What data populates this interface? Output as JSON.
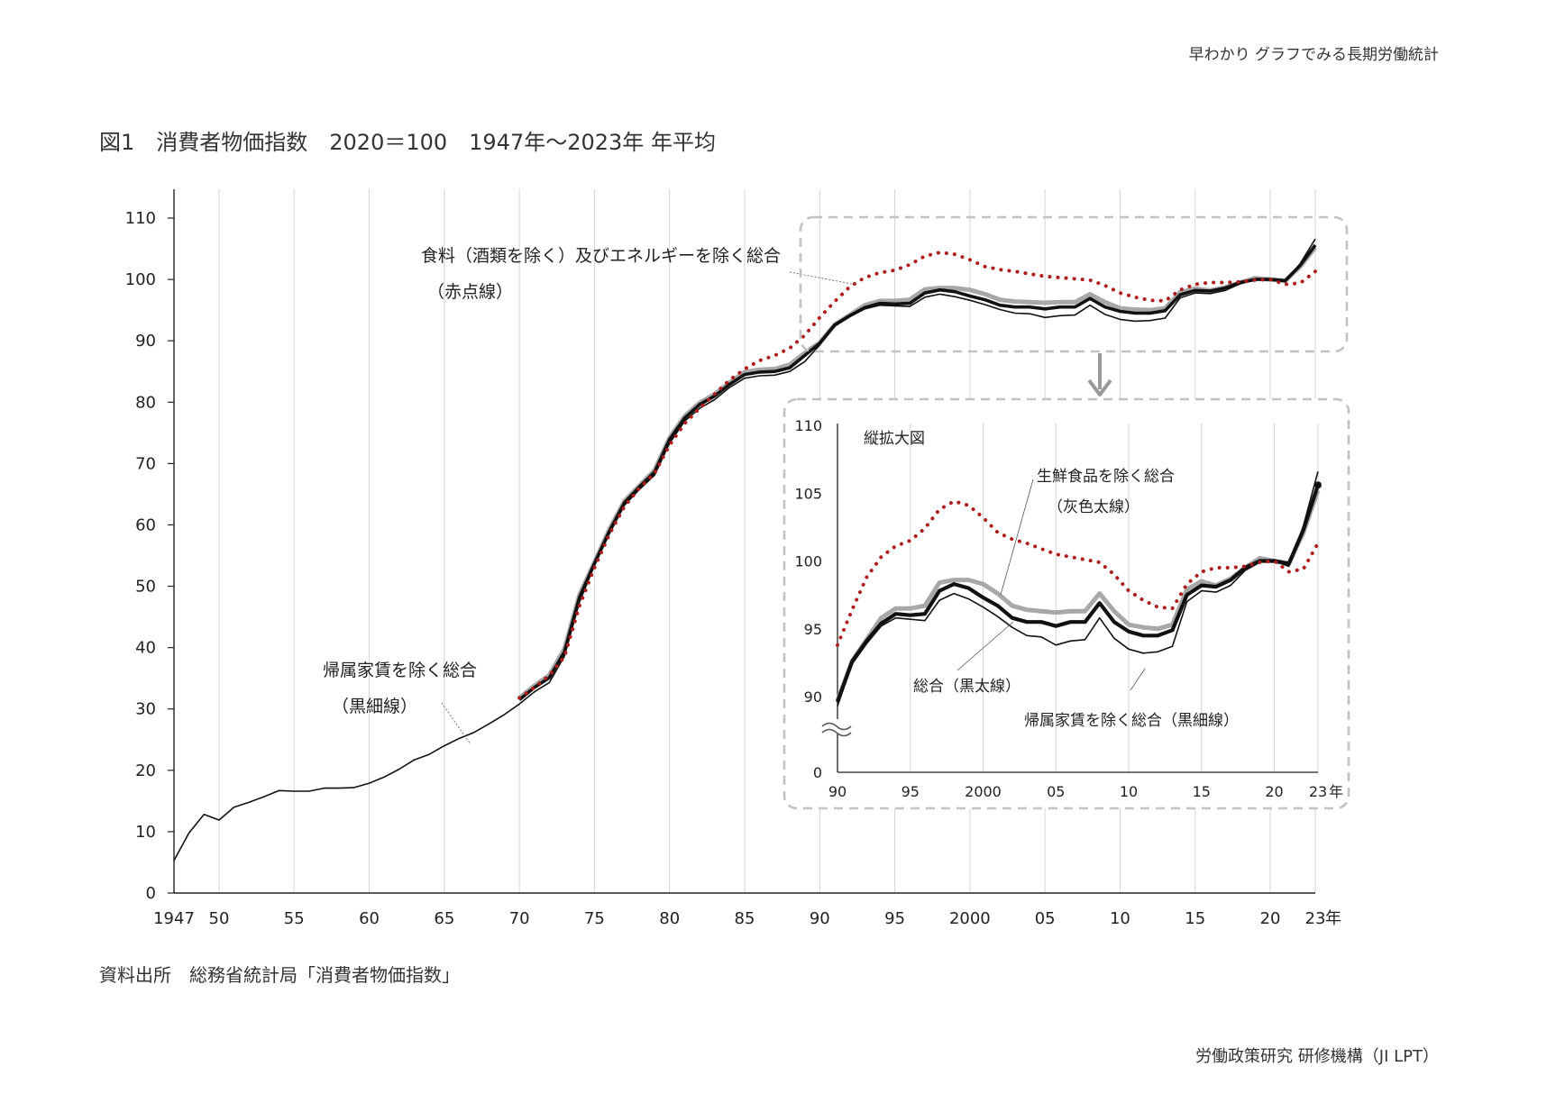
{
  "header": {
    "top_right": "早わかり グラフでみる長期労働統計",
    "figure_title": "図1　消費者物価指数　2020＝100　1947年～2023年 年平均",
    "source": "資料出所　総務省統計局「消費者物価指数」",
    "organization": "労働政策研究 研修機構（JI LPT）"
  },
  "colors": {
    "sogo": "#111111",
    "excl_fresh": "#a8a8a8",
    "excl_rent": "#111111",
    "excl_food_energy": "#b01c1c",
    "gridline": "#d4d4d4",
    "frame": "#c2c2c2"
  },
  "chart_data": [
    {
      "type": "line",
      "panel": "main",
      "x_unit": "year",
      "xlim": [
        1947,
        2023
      ],
      "ylim": [
        0,
        110
      ],
      "yticks": [
        0,
        10,
        20,
        30,
        40,
        50,
        60,
        70,
        80,
        90,
        100,
        110
      ],
      "xtick_values": [
        1947,
        1950,
        1955,
        1960,
        1965,
        1970,
        1975,
        1980,
        1985,
        1990,
        1995,
        2000,
        2005,
        2010,
        2015,
        2020,
        2023
      ],
      "xtick_labels": [
        "1947",
        "50",
        "55",
        "60",
        "65",
        "70",
        "75",
        "80",
        "85",
        "90",
        "95",
        "2000",
        "05",
        "10",
        "15",
        "20",
        "23"
      ],
      "x_unit_label": "年",
      "grid": "vertical",
      "annotations": [
        {
          "lines": [
            "食料（酒類を除く）及びエネルギーを除く総合",
            "（赤点線）"
          ],
          "target": "excl_food_energy"
        },
        {
          "lines": [
            "帰属家賃を除く総合",
            "（黒細線）"
          ],
          "target": "excl_rent"
        }
      ]
    },
    {
      "type": "line",
      "panel": "inset",
      "title": "縦拡大図",
      "x_unit": "year",
      "xlim": [
        1990,
        2023
      ],
      "ylim": [
        90,
        110
      ],
      "y_axis_break": true,
      "ytick_values": [
        90,
        95,
        100,
        105,
        110
      ],
      "ytick_labels": [
        "90",
        "95",
        "100",
        "105",
        "110"
      ],
      "y_origin_label": "0",
      "xtick_values": [
        1990,
        1995,
        2000,
        2005,
        2010,
        2015,
        2020,
        2023
      ],
      "xtick_labels": [
        "90",
        "95",
        "2000",
        "05",
        "10",
        "15",
        "20",
        "23"
      ],
      "x_unit_label": "年",
      "grid": "vertical",
      "annotations": [
        {
          "lines": [
            "生鮮食品を除く総合",
            "（灰色太線）"
          ],
          "target": "excl_fresh"
        },
        {
          "lines": [
            "総合（黒太線）"
          ],
          "target": "sogo"
        },
        {
          "lines": [
            "帰属家賃を除く総合（黒細線）"
          ],
          "target": "excl_rent"
        }
      ]
    }
  ],
  "series": {
    "excl_rent": {
      "x": [
        1947,
        1948,
        1949,
        1950,
        1951,
        1952,
        1953,
        1954,
        1955,
        1956,
        1957,
        1958,
        1959,
        1960,
        1961,
        1962,
        1963,
        1964,
        1965,
        1966,
        1967,
        1968,
        1969,
        1970,
        1971,
        1972,
        1973,
        1974,
        1975,
        1976,
        1977,
        1978,
        1979,
        1980,
        1981,
        1982,
        1983,
        1984,
        1985,
        1986,
        1987,
        1988,
        1989,
        1990,
        1991,
        1992,
        1993,
        1994,
        1995,
        1996,
        1997,
        1998,
        1999,
        2000,
        2001,
        2002,
        2003,
        2004,
        2005,
        2006,
        2007,
        2008,
        2009,
        2010,
        2011,
        2012,
        2013,
        2014,
        2015,
        2016,
        2017,
        2018,
        2019,
        2020,
        2021,
        2022,
        2023
      ],
      "values": [
        5.3,
        9.8,
        12.8,
        11.9,
        14.0,
        14.8,
        15.7,
        16.7,
        16.6,
        16.6,
        17.1,
        17.1,
        17.2,
        17.9,
        18.9,
        20.2,
        21.7,
        22.6,
        24.0,
        25.2,
        26.2,
        27.6,
        29.1,
        30.8,
        32.8,
        34.3,
        38.6,
        47.4,
        53.4,
        58.6,
        63.2,
        65.8,
        68.1,
        73.3,
        76.9,
        79.0,
        80.4,
        82.4,
        83.9,
        84.3,
        84.4,
        85.0,
        86.6,
        89.3,
        92.4,
        93.9,
        95.2,
        95.8,
        95.7,
        95.6,
        97.1,
        97.6,
        97.2,
        96.6,
        95.9,
        95.1,
        94.5,
        94.4,
        93.8,
        94.1,
        94.2,
        95.8,
        94.3,
        93.5,
        93.2,
        93.3,
        93.7,
        97.0,
        97.8,
        97.7,
        98.2,
        99.3,
        99.9,
        100.0,
        99.6,
        102.6,
        106.6
      ]
    },
    "sogo": {
      "x": [
        1970,
        1971,
        1972,
        1973,
        1974,
        1975,
        1976,
        1977,
        1978,
        1979,
        1980,
        1981,
        1982,
        1983,
        1984,
        1985,
        1986,
        1987,
        1988,
        1989,
        1990,
        1991,
        1992,
        1993,
        1994,
        1995,
        1996,
        1997,
        1998,
        1999,
        2000,
        2001,
        2002,
        2003,
        2004,
        2005,
        2006,
        2007,
        2008,
        2009,
        2010,
        2011,
        2012,
        2013,
        2014,
        2015,
        2016,
        2017,
        2018,
        2019,
        2020,
        2021,
        2022,
        2023
      ],
      "values": [
        31.5,
        33.5,
        35.1,
        39.3,
        48.2,
        53.7,
        59.0,
        63.6,
        66.2,
        68.6,
        73.9,
        77.4,
        79.6,
        81.0,
        82.9,
        84.5,
        84.9,
        85.0,
        85.6,
        87.6,
        89.6,
        92.6,
        94.1,
        95.4,
        96.1,
        96.0,
        96.1,
        97.8,
        98.3,
        98.0,
        97.3,
        96.7,
        95.8,
        95.5,
        95.5,
        95.2,
        95.5,
        95.5,
        96.9,
        95.5,
        94.8,
        94.5,
        94.5,
        94.9,
        97.5,
        98.2,
        98.1,
        98.6,
        99.5,
        100.0,
        100.0,
        99.8,
        102.3,
        105.6
      ]
    },
    "excl_fresh": {
      "x": [
        1970,
        1971,
        1972,
        1973,
        1974,
        1975,
        1976,
        1977,
        1978,
        1979,
        1980,
        1981,
        1982,
        1983,
        1984,
        1985,
        1986,
        1987,
        1988,
        1989,
        1990,
        1991,
        1992,
        1993,
        1994,
        1995,
        1996,
        1997,
        1998,
        1999,
        2000,
        2001,
        2002,
        2003,
        2004,
        2005,
        2006,
        2007,
        2008,
        2009,
        2010,
        2011,
        2012,
        2013,
        2014,
        2015,
        2016,
        2017,
        2018,
        2019,
        2020,
        2021,
        2022,
        2023
      ],
      "values": [
        31.8,
        33.8,
        35.5,
        39.8,
        48.6,
        53.9,
        59.3,
        63.9,
        66.4,
        68.9,
        74.2,
        77.7,
        79.9,
        81.3,
        83.2,
        84.9,
        85.3,
        85.4,
        86.1,
        88.0,
        89.7,
        92.6,
        94.2,
        95.8,
        96.5,
        96.5,
        96.7,
        98.4,
        98.6,
        98.6,
        98.3,
        97.6,
        96.7,
        96.4,
        96.3,
        96.2,
        96.3,
        96.3,
        97.6,
        96.3,
        95.3,
        95.1,
        95.0,
        95.3,
        97.9,
        98.5,
        98.2,
        98.7,
        99.5,
        100.2,
        100.0,
        99.8,
        102.1,
        105.2
      ]
    },
    "excl_food_energy": {
      "x": [
        1970,
        1971,
        1972,
        1973,
        1974,
        1975,
        1976,
        1977,
        1978,
        1979,
        1980,
        1981,
        1982,
        1983,
        1984,
        1985,
        1986,
        1987,
        1988,
        1989,
        1990,
        1991,
        1992,
        1993,
        1994,
        1995,
        1996,
        1997,
        1998,
        1999,
        2000,
        2001,
        2002,
        2003,
        2004,
        2005,
        2006,
        2007,
        2008,
        2009,
        2010,
        2011,
        2012,
        2013,
        2014,
        2015,
        2016,
        2017,
        2018,
        2019,
        2020,
        2021,
        2022,
        2023
      ],
      "values": [
        31.8,
        33.5,
        35.5,
        38.5,
        46.8,
        53.0,
        58.5,
        63.0,
        66.0,
        68.4,
        73.0,
        76.5,
        79.0,
        81.3,
        83.6,
        85.4,
        86.8,
        87.6,
        88.8,
        90.9,
        93.8,
        96.4,
        98.8,
        100.3,
        101.1,
        101.5,
        102.4,
        103.8,
        104.4,
        104.1,
        103.2,
        102.1,
        101.6,
        101.3,
        100.9,
        100.5,
        100.3,
        100.1,
        99.9,
        99.0,
        97.8,
        97.1,
        96.6,
        96.5,
        98.3,
        99.2,
        99.5,
        99.5,
        99.6,
        99.9,
        100.0,
        99.2,
        99.4,
        101.3
      ]
    }
  }
}
